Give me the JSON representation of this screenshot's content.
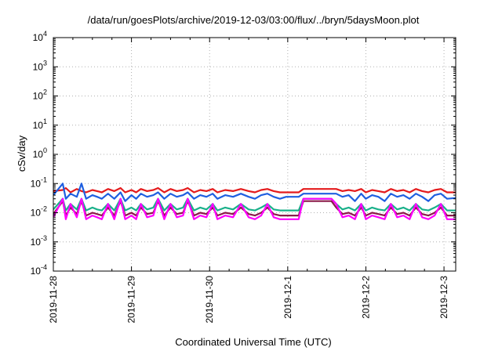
{
  "chart_data": {
    "type": "line",
    "title": "/data/run/goesPlots/archive/2019-12-03/03:00/flux/../bryn/5daysMoon.plot",
    "xlabel": "Coordinated Universal Time (UTC)",
    "ylabel": "cSv/day",
    "yscale": "log",
    "ylim": [
      0.0001,
      10000
    ],
    "xlim": [
      0,
      5.15
    ],
    "grid": true,
    "y_ticks": [
      {
        "base": "10",
        "exp": "-4",
        "value": 0.0001
      },
      {
        "base": "10",
        "exp": "-3",
        "value": 0.001
      },
      {
        "base": "10",
        "exp": "-2",
        "value": 0.01
      },
      {
        "base": "10",
        "exp": "-1",
        "value": 0.1
      },
      {
        "base": "10",
        "exp": "0",
        "value": 1
      },
      {
        "base": "10",
        "exp": "1",
        "value": 10
      },
      {
        "base": "10",
        "exp": "2",
        "value": 100
      },
      {
        "base": "10",
        "exp": "3",
        "value": 1000
      },
      {
        "base": "10",
        "exp": "4",
        "value": 10000
      }
    ],
    "x_ticks": [
      {
        "label": "2019-11-28",
        "value": 0
      },
      {
        "label": "2019-11-29",
        "value": 1
      },
      {
        "label": "2019-11-30",
        "value": 2
      },
      {
        "label": "2019-12-1",
        "value": 3
      },
      {
        "label": "2019-12-2",
        "value": 4
      },
      {
        "label": "2019-12-3",
        "value": 5
      }
    ],
    "series": [
      {
        "color": "#e41a1c",
        "x": [
          0,
          0.12,
          0.16,
          0.22,
          0.3,
          0.36,
          0.42,
          0.5,
          0.56,
          0.62,
          0.7,
          0.78,
          0.86,
          0.92,
          1.0,
          1.06,
          1.12,
          1.2,
          1.28,
          1.34,
          1.42,
          1.5,
          1.58,
          1.66,
          1.72,
          1.8,
          1.88,
          1.96,
          2.04,
          2.1,
          2.2,
          2.3,
          2.4,
          2.5,
          2.58,
          2.66,
          2.74,
          2.82,
          2.9,
          2.98,
          3.06,
          3.14,
          3.2,
          3.3,
          3.4,
          3.48,
          3.56,
          3.62,
          3.7,
          3.78,
          3.86,
          3.94,
          4.0,
          4.08,
          4.16,
          4.24,
          4.32,
          4.4,
          4.48,
          4.56,
          4.64,
          4.72,
          4.8,
          4.88,
          4.96,
          5.04,
          5.15
        ],
        "y": [
          0.055,
          0.06,
          0.07,
          0.05,
          0.065,
          0.055,
          0.05,
          0.06,
          0.055,
          0.05,
          0.065,
          0.055,
          0.07,
          0.05,
          0.06,
          0.05,
          0.065,
          0.055,
          0.06,
          0.07,
          0.05,
          0.065,
          0.055,
          0.06,
          0.07,
          0.05,
          0.06,
          0.055,
          0.065,
          0.05,
          0.06,
          0.055,
          0.065,
          0.055,
          0.05,
          0.06,
          0.065,
          0.055,
          0.05,
          0.05,
          0.05,
          0.05,
          0.065,
          0.065,
          0.065,
          0.065,
          0.065,
          0.065,
          0.055,
          0.06,
          0.055,
          0.065,
          0.05,
          0.06,
          0.055,
          0.05,
          0.065,
          0.055,
          0.06,
          0.05,
          0.065,
          0.055,
          0.05,
          0.06,
          0.065,
          0.05,
          0.05
        ]
      },
      {
        "color": "#1f5fe0",
        "x": [
          0,
          0.12,
          0.16,
          0.22,
          0.3,
          0.36,
          0.42,
          0.5,
          0.56,
          0.62,
          0.7,
          0.78,
          0.86,
          0.92,
          1.0,
          1.06,
          1.12,
          1.2,
          1.28,
          1.34,
          1.42,
          1.5,
          1.58,
          1.66,
          1.72,
          1.8,
          1.88,
          1.96,
          2.04,
          2.1,
          2.2,
          2.3,
          2.4,
          2.5,
          2.58,
          2.66,
          2.74,
          2.82,
          2.9,
          2.98,
          3.06,
          3.14,
          3.2,
          3.3,
          3.4,
          3.48,
          3.56,
          3.62,
          3.7,
          3.78,
          3.86,
          3.94,
          4.0,
          4.08,
          4.16,
          4.24,
          4.32,
          4.4,
          4.48,
          4.56,
          4.64,
          4.72,
          4.8,
          4.88,
          4.96,
          5.04,
          5.15
        ],
        "y": [
          0.04,
          0.1,
          0.03,
          0.045,
          0.035,
          0.1,
          0.03,
          0.04,
          0.035,
          0.03,
          0.045,
          0.03,
          0.05,
          0.025,
          0.04,
          0.03,
          0.045,
          0.035,
          0.04,
          0.05,
          0.03,
          0.045,
          0.035,
          0.04,
          0.05,
          0.03,
          0.04,
          0.035,
          0.045,
          0.03,
          0.04,
          0.035,
          0.045,
          0.035,
          0.03,
          0.04,
          0.045,
          0.035,
          0.03,
          0.035,
          0.035,
          0.035,
          0.045,
          0.045,
          0.045,
          0.045,
          0.045,
          0.045,
          0.035,
          0.04,
          0.025,
          0.045,
          0.03,
          0.04,
          0.035,
          0.025,
          0.045,
          0.035,
          0.04,
          0.03,
          0.045,
          0.035,
          0.025,
          0.04,
          0.045,
          0.03,
          0.032
        ]
      },
      {
        "color": "#1ab08a",
        "x": [
          0,
          0.12,
          0.16,
          0.22,
          0.3,
          0.36,
          0.42,
          0.5,
          0.56,
          0.62,
          0.7,
          0.78,
          0.86,
          0.92,
          1.0,
          1.06,
          1.12,
          1.2,
          1.28,
          1.34,
          1.42,
          1.5,
          1.58,
          1.66,
          1.72,
          1.8,
          1.88,
          1.96,
          2.04,
          2.1,
          2.2,
          2.3,
          2.4,
          2.5,
          2.58,
          2.66,
          2.74,
          2.82,
          2.9,
          2.98,
          3.06,
          3.14,
          3.2,
          3.3,
          3.4,
          3.48,
          3.56,
          3.62,
          3.7,
          3.78,
          3.86,
          3.94,
          4.0,
          4.08,
          4.16,
          4.24,
          4.32,
          4.4,
          4.48,
          4.56,
          4.64,
          4.72,
          4.8,
          4.88,
          4.96,
          5.04,
          5.15
        ],
        "y": [
          0.013,
          0.03,
          0.012,
          0.02,
          0.013,
          0.03,
          0.012,
          0.015,
          0.013,
          0.012,
          0.02,
          0.012,
          0.03,
          0.012,
          0.015,
          0.012,
          0.02,
          0.013,
          0.015,
          0.03,
          0.012,
          0.02,
          0.013,
          0.015,
          0.03,
          0.012,
          0.015,
          0.013,
          0.02,
          0.012,
          0.015,
          0.013,
          0.02,
          0.013,
          0.012,
          0.015,
          0.02,
          0.013,
          0.012,
          0.012,
          0.012,
          0.012,
          0.03,
          0.03,
          0.03,
          0.03,
          0.03,
          0.02,
          0.013,
          0.015,
          0.012,
          0.02,
          0.012,
          0.015,
          0.013,
          0.012,
          0.02,
          0.013,
          0.015,
          0.012,
          0.02,
          0.013,
          0.012,
          0.015,
          0.02,
          0.012,
          0.012
        ]
      },
      {
        "color": "#8b1a4a",
        "x": [
          0,
          0.12,
          0.16,
          0.22,
          0.3,
          0.36,
          0.42,
          0.5,
          0.56,
          0.62,
          0.7,
          0.78,
          0.86,
          0.92,
          1.0,
          1.06,
          1.12,
          1.2,
          1.28,
          1.34,
          1.42,
          1.5,
          1.58,
          1.66,
          1.72,
          1.8,
          1.88,
          1.96,
          2.04,
          2.1,
          2.2,
          2.3,
          2.4,
          2.5,
          2.58,
          2.66,
          2.74,
          2.82,
          2.9,
          2.98,
          3.06,
          3.14,
          3.2,
          3.3,
          3.4,
          3.48,
          3.56,
          3.62,
          3.7,
          3.78,
          3.86,
          3.94,
          4.0,
          4.08,
          4.16,
          4.24,
          4.32,
          4.4,
          4.48,
          4.56,
          4.64,
          4.72,
          4.8,
          4.88,
          4.96,
          5.04,
          5.15
        ],
        "y": [
          0.009,
          0.025,
          0.008,
          0.015,
          0.009,
          0.025,
          0.008,
          0.01,
          0.009,
          0.008,
          0.015,
          0.008,
          0.025,
          0.008,
          0.01,
          0.008,
          0.015,
          0.009,
          0.01,
          0.025,
          0.008,
          0.015,
          0.009,
          0.01,
          0.025,
          0.008,
          0.01,
          0.009,
          0.015,
          0.008,
          0.01,
          0.009,
          0.015,
          0.009,
          0.008,
          0.01,
          0.015,
          0.009,
          0.008,
          0.008,
          0.008,
          0.008,
          0.025,
          0.025,
          0.025,
          0.025,
          0.025,
          0.015,
          0.009,
          0.01,
          0.008,
          0.015,
          0.008,
          0.01,
          0.009,
          0.008,
          0.015,
          0.009,
          0.01,
          0.008,
          0.015,
          0.009,
          0.008,
          0.01,
          0.015,
          0.008,
          0.008
        ]
      },
      {
        "color": "#ff00ff",
        "x": [
          0,
          0.12,
          0.16,
          0.22,
          0.3,
          0.36,
          0.42,
          0.5,
          0.56,
          0.62,
          0.7,
          0.78,
          0.86,
          0.92,
          1.0,
          1.06,
          1.12,
          1.2,
          1.28,
          1.34,
          1.42,
          1.5,
          1.58,
          1.66,
          1.72,
          1.8,
          1.88,
          1.96,
          2.04,
          2.1,
          2.2,
          2.3,
          2.4,
          2.5,
          2.58,
          2.66,
          2.74,
          2.82,
          2.9,
          2.98,
          3.06,
          3.14,
          3.2,
          3.3,
          3.4,
          3.48,
          3.56,
          3.62,
          3.7,
          3.78,
          3.86,
          3.94,
          4.0,
          4.08,
          4.16,
          4.24,
          4.32,
          4.4,
          4.48,
          4.56,
          4.64,
          4.72,
          4.8,
          4.88,
          4.96,
          5.04,
          5.15
        ],
        "y": [
          0.007,
          0.03,
          0.006,
          0.02,
          0.007,
          0.03,
          0.006,
          0.008,
          0.007,
          0.006,
          0.02,
          0.006,
          0.03,
          0.006,
          0.008,
          0.006,
          0.02,
          0.007,
          0.008,
          0.03,
          0.006,
          0.02,
          0.007,
          0.008,
          0.03,
          0.006,
          0.008,
          0.007,
          0.02,
          0.006,
          0.008,
          0.007,
          0.02,
          0.007,
          0.006,
          0.008,
          0.02,
          0.007,
          0.006,
          0.006,
          0.006,
          0.006,
          0.03,
          0.03,
          0.03,
          0.03,
          0.03,
          0.02,
          0.007,
          0.008,
          0.006,
          0.02,
          0.006,
          0.008,
          0.007,
          0.006,
          0.02,
          0.007,
          0.008,
          0.006,
          0.02,
          0.007,
          0.006,
          0.008,
          0.02,
          0.006,
          0.006
        ]
      }
    ]
  }
}
